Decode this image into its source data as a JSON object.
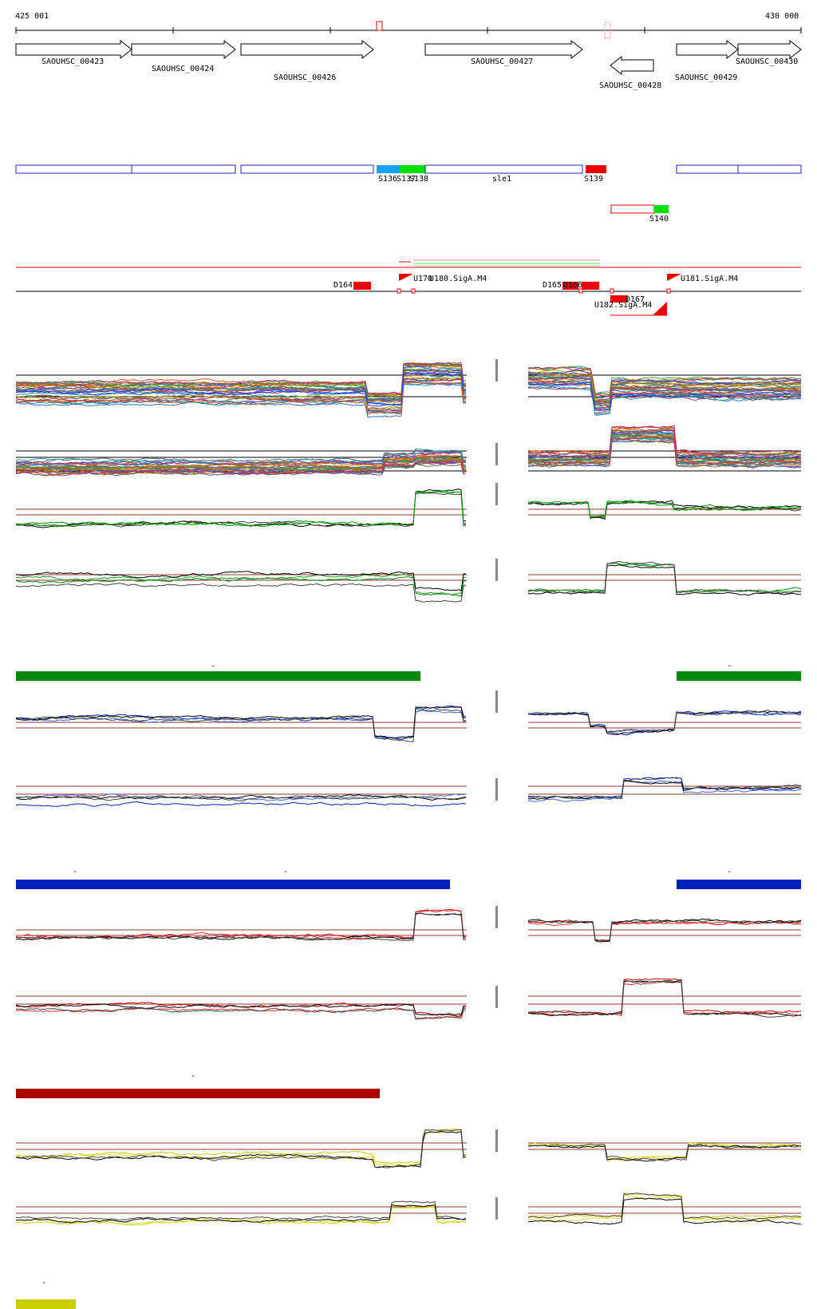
{
  "coordinates": {
    "start_label": "425 001",
    "end_label": "430 000"
  },
  "genes": [
    {
      "label": "SAOUHSC_00423",
      "strand": "+"
    },
    {
      "label": "SAOUHSC_00424",
      "strand": "+"
    },
    {
      "label": "SAOUHSC_00426",
      "strand": "+"
    },
    {
      "label": "SAOUHSC_00427",
      "strand": "+"
    },
    {
      "label": "SAOUHSC_00428",
      "strand": "-"
    },
    {
      "label": "SAOUHSC_00429",
      "strand": "+"
    },
    {
      "label": "SAOUHSC_00430",
      "strand": "+"
    }
  ],
  "segments": [
    {
      "label": "S136",
      "color": "#1aa0f0"
    },
    {
      "label": "S137",
      "color": "#00e000"
    },
    {
      "label": "S138",
      "color": "#00e000"
    },
    {
      "label": "sle1",
      "color": "#2020c0"
    },
    {
      "label": "S139",
      "color": "#ee0000"
    },
    {
      "label": "S140",
      "color": "#00e000"
    }
  ],
  "features": [
    {
      "label": "D164"
    },
    {
      "label": "U170"
    },
    {
      "label": "U180.SigA.M4"
    },
    {
      "label": "D165"
    },
    {
      "label": "D166"
    },
    {
      "label": "D167"
    },
    {
      "label": "U182.SigA.M4"
    },
    {
      "label": "U181.SigA.M4"
    }
  ],
  "condition_bars": [
    {
      "color": "#008800",
      "tick": "-"
    },
    {
      "color": "#0022bb",
      "tick": "-"
    },
    {
      "color": "#aa0000",
      "tick": "-"
    },
    {
      "color": "#c8cc00",
      "tick": "-"
    }
  ],
  "colors": {
    "gene_outline": "#000000",
    "segment_outline": "#2020c0",
    "threshold_line": "#993333",
    "feature_red": "#ee0000"
  }
}
